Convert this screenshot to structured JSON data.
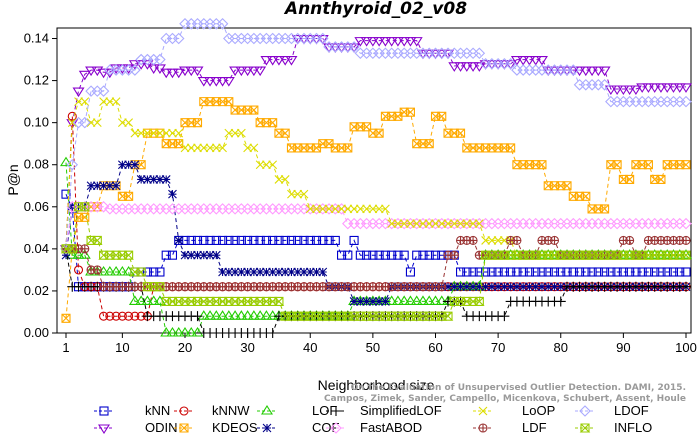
{
  "chart_data": {
    "type": "line",
    "title": "Annthyroid_02_v08",
    "xlabel": "Neighborhood size",
    "ylabel": "P@n",
    "xlim": [
      1,
      100
    ],
    "ylim": [
      0,
      0.145
    ],
    "xticks": [
      1,
      10,
      20,
      30,
      40,
      50,
      60,
      70,
      80,
      90,
      100
    ],
    "yticks": [
      0.0,
      0.02,
      0.04,
      0.06,
      0.08,
      0.1,
      0.12,
      0.14
    ],
    "ytick_labels": [
      "0.00",
      "0.02",
      "0.04",
      "0.06",
      "0.08",
      "0.10",
      "0.12",
      "0.14"
    ],
    "grid": false,
    "legend_position": "bottom",
    "credit_lines": [
      "Campos, Zimek, Sander, Campello, Micenkova, Schubert, Assent, Houle",
      "On the Evaluation of Unsupervised Outlier Detection. DAMI, 2015."
    ],
    "series": [
      {
        "name": "kNN",
        "color": "#0000cc",
        "marker": "square",
        "points": [
          [
            1,
            0.066
          ],
          [
            2,
            0.059
          ],
          [
            3,
            0.022
          ],
          [
            5,
            0.022
          ],
          [
            10,
            0.022
          ],
          [
            13,
            0.029
          ],
          [
            15,
            0.029
          ],
          [
            17,
            0.037
          ],
          [
            19,
            0.044
          ],
          [
            25,
            0.044
          ],
          [
            35,
            0.044
          ],
          [
            43,
            0.044
          ],
          [
            45,
            0.037
          ],
          [
            47,
            0.044
          ],
          [
            48,
            0.037
          ],
          [
            55,
            0.037
          ],
          [
            56,
            0.029
          ],
          [
            57,
            0.037
          ],
          [
            63,
            0.037
          ],
          [
            64,
            0.029
          ],
          [
            70,
            0.029
          ],
          [
            80,
            0.029
          ],
          [
            90,
            0.029
          ],
          [
            100,
            0.029
          ]
        ]
      },
      {
        "name": "ODIN",
        "color": "#8800cc",
        "marker": "triangle-down",
        "points": [
          [
            1,
            0.04
          ],
          [
            2,
            0.1
          ],
          [
            3,
            0.115
          ],
          [
            4,
            0.123
          ],
          [
            5,
            0.125
          ],
          [
            7,
            0.124
          ],
          [
            10,
            0.126
          ],
          [
            13,
            0.128
          ],
          [
            15,
            0.126
          ],
          [
            18,
            0.124
          ],
          [
            20,
            0.125
          ],
          [
            25,
            0.12
          ],
          [
            30,
            0.125
          ],
          [
            35,
            0.13
          ],
          [
            40,
            0.14
          ],
          [
            45,
            0.136
          ],
          [
            50,
            0.139
          ],
          [
            55,
            0.139
          ],
          [
            60,
            0.133
          ],
          [
            65,
            0.127
          ],
          [
            70,
            0.128
          ],
          [
            75,
            0.13
          ],
          [
            80,
            0.125
          ],
          [
            85,
            0.125
          ],
          [
            90,
            0.116
          ],
          [
            95,
            0.117
          ],
          [
            100,
            0.117
          ]
        ]
      },
      {
        "name": "kNNW",
        "color": "#cc0000",
        "marker": "circle",
        "points": [
          [
            1,
            0.04
          ],
          [
            2,
            0.103
          ],
          [
            3,
            0.03
          ],
          [
            4,
            0.022
          ],
          [
            5,
            0.022
          ],
          [
            7,
            0.008
          ],
          [
            10,
            0.008
          ],
          [
            13,
            0.008
          ],
          [
            15,
            0.022
          ],
          [
            20,
            0.022
          ],
          [
            30,
            0.022
          ],
          [
            40,
            0.022
          ],
          [
            50,
            0.022
          ],
          [
            60,
            0.022
          ],
          [
            70,
            0.022
          ],
          [
            80,
            0.022
          ],
          [
            90,
            0.022
          ],
          [
            100,
            0.022
          ]
        ]
      },
      {
        "name": "KDEOS",
        "color": "#ffaa00",
        "marker": "square-x",
        "points": [
          [
            1,
            0.007
          ],
          [
            2,
            0.04
          ],
          [
            3,
            0.055
          ],
          [
            5,
            0.06
          ],
          [
            8,
            0.07
          ],
          [
            10,
            0.065
          ],
          [
            12,
            0.08
          ],
          [
            15,
            0.095
          ],
          [
            18,
            0.09
          ],
          [
            20,
            0.1
          ],
          [
            25,
            0.11
          ],
          [
            30,
            0.106
          ],
          [
            33,
            0.1
          ],
          [
            35,
            0.095
          ],
          [
            38,
            0.088
          ],
          [
            40,
            0.088
          ],
          [
            42,
            0.09
          ],
          [
            45,
            0.088
          ],
          [
            48,
            0.098
          ],
          [
            50,
            0.095
          ],
          [
            53,
            0.103
          ],
          [
            55,
            0.105
          ],
          [
            58,
            0.09
          ],
          [
            60,
            0.103
          ],
          [
            63,
            0.095
          ],
          [
            66,
            0.088
          ],
          [
            70,
            0.088
          ],
          [
            75,
            0.08
          ],
          [
            80,
            0.07
          ],
          [
            83,
            0.065
          ],
          [
            86,
            0.059
          ],
          [
            88,
            0.08
          ],
          [
            90,
            0.073
          ],
          [
            93,
            0.08
          ],
          [
            95,
            0.073
          ],
          [
            98,
            0.08
          ],
          [
            100,
            0.08
          ]
        ]
      },
      {
        "name": "LOF",
        "color": "#22cc00",
        "marker": "triangle-up",
        "points": [
          [
            1,
            0.081
          ],
          [
            2,
            0.037
          ],
          [
            3,
            0.037
          ],
          [
            5,
            0.029
          ],
          [
            8,
            0.029
          ],
          [
            10,
            0.029
          ],
          [
            13,
            0.015
          ],
          [
            15,
            0.015
          ],
          [
            18,
            0.0
          ],
          [
            20,
            0.0
          ],
          [
            25,
            0.008
          ],
          [
            30,
            0.008
          ],
          [
            40,
            0.008
          ],
          [
            45,
            0.008
          ],
          [
            48,
            0.015
          ],
          [
            55,
            0.015
          ],
          [
            60,
            0.015
          ],
          [
            64,
            0.022
          ],
          [
            70,
            0.037
          ],
          [
            75,
            0.037
          ],
          [
            80,
            0.037
          ],
          [
            85,
            0.037
          ],
          [
            90,
            0.037
          ],
          [
            95,
            0.037
          ],
          [
            100,
            0.037
          ]
        ]
      },
      {
        "name": "COF",
        "color": "#000088",
        "marker": "star",
        "points": [
          [
            1,
            0.037
          ],
          [
            2,
            0.06
          ],
          [
            3,
            0.06
          ],
          [
            5,
            0.07
          ],
          [
            8,
            0.07
          ],
          [
            10,
            0.08
          ],
          [
            12,
            0.08
          ],
          [
            13,
            0.073
          ],
          [
            15,
            0.073
          ],
          [
            17,
            0.073
          ],
          [
            18,
            0.066
          ],
          [
            19,
            0.044
          ],
          [
            20,
            0.037
          ],
          [
            25,
            0.037
          ],
          [
            26,
            0.029
          ],
          [
            30,
            0.029
          ],
          [
            40,
            0.029
          ],
          [
            45,
            0.022
          ],
          [
            48,
            0.015
          ],
          [
            50,
            0.015
          ],
          [
            55,
            0.022
          ],
          [
            60,
            0.022
          ],
          [
            70,
            0.022
          ],
          [
            80,
            0.022
          ],
          [
            90,
            0.022
          ],
          [
            100,
            0.022
          ]
        ]
      },
      {
        "name": "SimplifiedLOF",
        "color": "#000000",
        "marker": "plus",
        "points": [
          [
            1,
            0.04
          ],
          [
            2,
            0.022
          ],
          [
            3,
            0.022
          ],
          [
            5,
            0.022
          ],
          [
            10,
            0.022
          ],
          [
            12,
            0.022
          ],
          [
            15,
            0.008
          ],
          [
            18,
            0.008
          ],
          [
            20,
            0.008
          ],
          [
            25,
            0.0
          ],
          [
            30,
            0.0
          ],
          [
            34,
            0.0
          ],
          [
            35,
            0.008
          ],
          [
            40,
            0.008
          ],
          [
            50,
            0.008
          ],
          [
            55,
            0.008
          ],
          [
            60,
            0.008
          ],
          [
            62,
            0.015
          ],
          [
            64,
            0.015
          ],
          [
            65,
            0.008
          ],
          [
            70,
            0.008
          ],
          [
            72,
            0.015
          ],
          [
            75,
            0.015
          ],
          [
            80,
            0.015
          ],
          [
            81,
            0.022
          ],
          [
            90,
            0.022
          ],
          [
            100,
            0.022
          ]
        ]
      },
      {
        "name": "FastABOD",
        "color": "#ff99ff",
        "marker": "diamond",
        "points": [
          [
            1,
            0.04
          ],
          [
            2,
            0.06
          ],
          [
            3,
            0.06
          ],
          [
            5,
            0.06
          ],
          [
            10,
            0.059
          ],
          [
            15,
            0.059
          ],
          [
            20,
            0.059
          ],
          [
            30,
            0.059
          ],
          [
            40,
            0.059
          ],
          [
            50,
            0.052
          ],
          [
            60,
            0.052
          ],
          [
            70,
            0.052
          ],
          [
            80,
            0.052
          ],
          [
            90,
            0.052
          ],
          [
            100,
            0.052
          ]
        ]
      },
      {
        "name": "LoOP",
        "color": "#dddd00",
        "marker": "x",
        "points": [
          [
            1,
            0.04
          ],
          [
            2,
            0.1
          ],
          [
            3,
            0.11
          ],
          [
            5,
            0.1
          ],
          [
            8,
            0.11
          ],
          [
            10,
            0.1
          ],
          [
            13,
            0.095
          ],
          [
            15,
            0.095
          ],
          [
            18,
            0.095
          ],
          [
            20,
            0.088
          ],
          [
            25,
            0.088
          ],
          [
            28,
            0.095
          ],
          [
            30,
            0.088
          ],
          [
            33,
            0.08
          ],
          [
            35,
            0.073
          ],
          [
            38,
            0.066
          ],
          [
            40,
            0.059
          ],
          [
            45,
            0.059
          ],
          [
            50,
            0.059
          ],
          [
            55,
            0.052
          ],
          [
            60,
            0.052
          ],
          [
            65,
            0.052
          ],
          [
            70,
            0.044
          ],
          [
            75,
            0.037
          ],
          [
            80,
            0.037
          ],
          [
            90,
            0.037
          ],
          [
            100,
            0.037
          ]
        ]
      },
      {
        "name": "LDF",
        "color": "#993333",
        "marker": "circle-plus",
        "points": [
          [
            1,
            0.04
          ],
          [
            3,
            0.04
          ],
          [
            5,
            0.03
          ],
          [
            7,
            0.022
          ],
          [
            10,
            0.022
          ],
          [
            15,
            0.022
          ],
          [
            20,
            0.022
          ],
          [
            30,
            0.022
          ],
          [
            40,
            0.022
          ],
          [
            50,
            0.022
          ],
          [
            60,
            0.022
          ],
          [
            62,
            0.037
          ],
          [
            65,
            0.044
          ],
          [
            68,
            0.037
          ],
          [
            70,
            0.037
          ],
          [
            72,
            0.044
          ],
          [
            75,
            0.037
          ],
          [
            78,
            0.044
          ],
          [
            80,
            0.037
          ],
          [
            83,
            0.037
          ],
          [
            85,
            0.037
          ],
          [
            88,
            0.037
          ],
          [
            90,
            0.044
          ],
          [
            92,
            0.037
          ],
          [
            95,
            0.044
          ],
          [
            100,
            0.044
          ]
        ]
      },
      {
        "name": "LDOF",
        "color": "#aaaaff",
        "marker": "diamond-open",
        "points": [
          [
            1,
            0.04
          ],
          [
            2,
            0.08
          ],
          [
            3,
            0.1
          ],
          [
            5,
            0.115
          ],
          [
            10,
            0.125
          ],
          [
            15,
            0.13
          ],
          [
            18,
            0.14
          ],
          [
            20,
            0.147
          ],
          [
            25,
            0.147
          ],
          [
            28,
            0.14
          ],
          [
            30,
            0.14
          ],
          [
            35,
            0.14
          ],
          [
            40,
            0.14
          ],
          [
            45,
            0.136
          ],
          [
            50,
            0.133
          ],
          [
            55,
            0.133
          ],
          [
            60,
            0.133
          ],
          [
            65,
            0.133
          ],
          [
            70,
            0.128
          ],
          [
            75,
            0.125
          ],
          [
            80,
            0.125
          ],
          [
            85,
            0.118
          ],
          [
            90,
            0.11
          ],
          [
            95,
            0.11
          ],
          [
            100,
            0.11
          ]
        ]
      },
      {
        "name": "INFLO",
        "color": "#99cc00",
        "marker": "square-hourglass",
        "points": [
          [
            1,
            0.04
          ],
          [
            3,
            0.06
          ],
          [
            5,
            0.044
          ],
          [
            8,
            0.037
          ],
          [
            10,
            0.037
          ],
          [
            12,
            0.029
          ],
          [
            15,
            0.022
          ],
          [
            18,
            0.015
          ],
          [
            20,
            0.015
          ],
          [
            25,
            0.015
          ],
          [
            30,
            0.015
          ],
          [
            40,
            0.008
          ],
          [
            50,
            0.008
          ],
          [
            60,
            0.008
          ],
          [
            65,
            0.015
          ],
          [
            70,
            0.037
          ],
          [
            75,
            0.037
          ],
          [
            80,
            0.037
          ],
          [
            90,
            0.037
          ],
          [
            100,
            0.037
          ]
        ]
      }
    ]
  }
}
